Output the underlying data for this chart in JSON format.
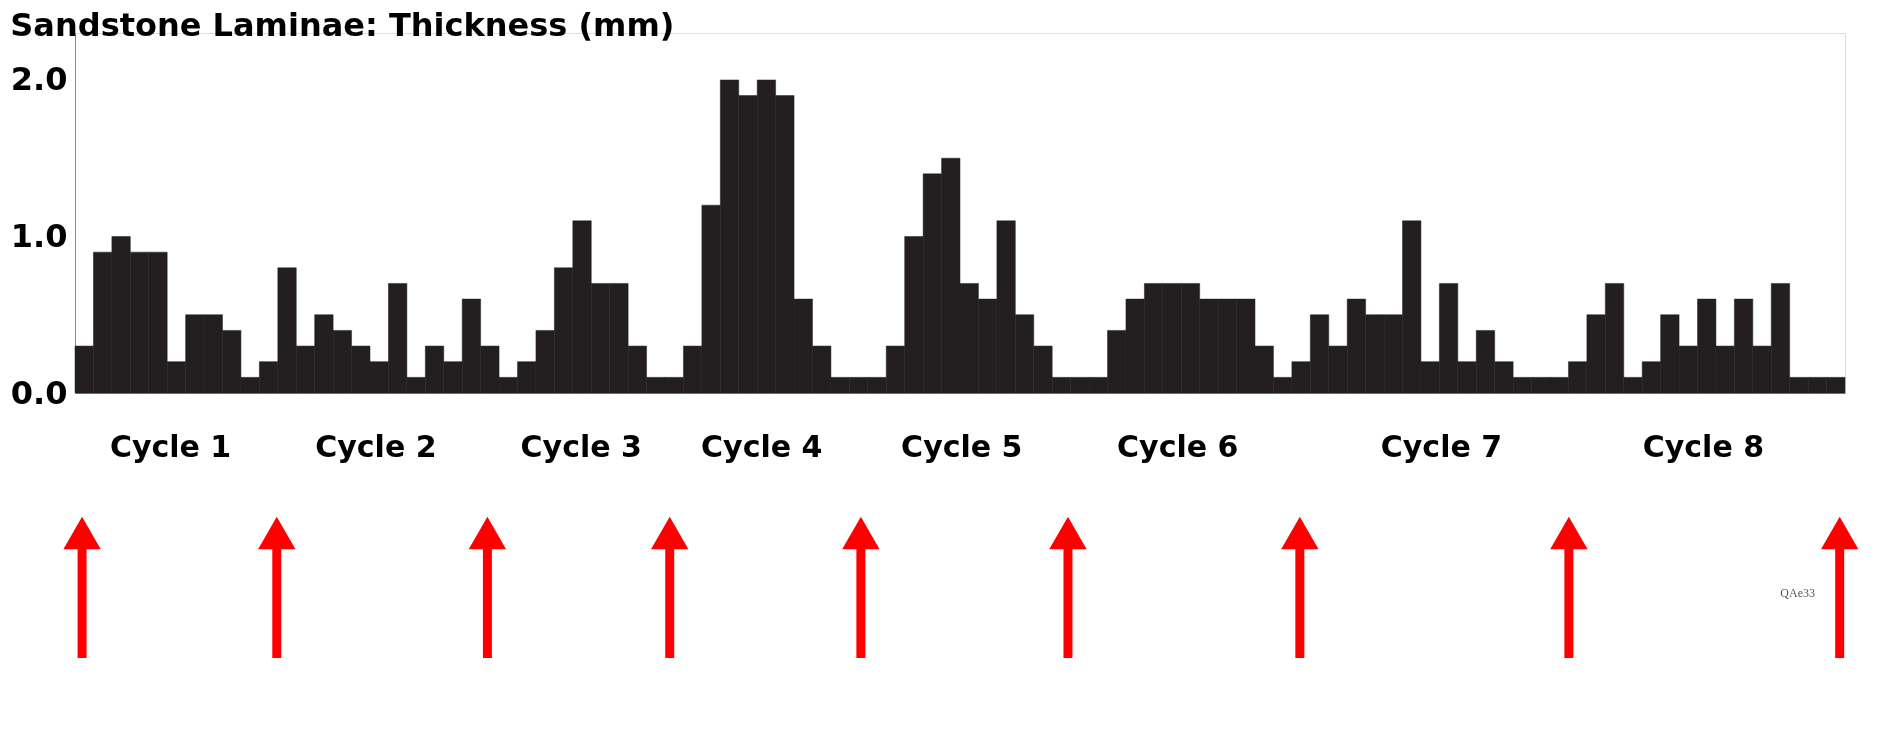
{
  "chart_data": {
    "type": "bar",
    "title": "Sandstone Laminae: Thickness (mm)",
    "categories": [
      null,
      null,
      null,
      null,
      null,
      null,
      null,
      null,
      null,
      null,
      null,
      null,
      null,
      null,
      null,
      null,
      null,
      null,
      null,
      null,
      null,
      null,
      null,
      null,
      null,
      null,
      null,
      null,
      null,
      null,
      null,
      null,
      null,
      null,
      null,
      null,
      null,
      null,
      null,
      null,
      null,
      null,
      null,
      null,
      null,
      null,
      null,
      null,
      null,
      null,
      null,
      null,
      null,
      null,
      null,
      null,
      null,
      null,
      null,
      null,
      null,
      null,
      null,
      null,
      null,
      null,
      null,
      null,
      null,
      null,
      null,
      null,
      null,
      null,
      null,
      null,
      null,
      null,
      null,
      null,
      null,
      null,
      null,
      null,
      null,
      null,
      null,
      null,
      null,
      null,
      null,
      null,
      null,
      null,
      null,
      null
    ],
    "values": [
      0.3,
      0.9,
      1.0,
      0.9,
      0.9,
      0.2,
      0.5,
      0.5,
      0.4,
      0.1,
      0.2,
      0.8,
      0.3,
      0.5,
      0.4,
      0.3,
      0.2,
      0.7,
      0.1,
      0.3,
      0.2,
      0.6,
      0.3,
      0.1,
      0.2,
      0.4,
      0.8,
      1.1,
      0.7,
      0.7,
      0.3,
      0.1,
      0.1,
      0.3,
      1.2,
      2.0,
      1.9,
      2.0,
      1.9,
      0.6,
      0.3,
      0.1,
      0.1,
      0.1,
      0.3,
      1.0,
      1.4,
      1.5,
      0.7,
      0.6,
      1.1,
      0.5,
      0.3,
      0.1,
      0.1,
      0.1,
      0.4,
      0.6,
      0.7,
      0.7,
      0.7,
      0.6,
      0.6,
      0.6,
      0.3,
      0.1,
      0.2,
      0.5,
      0.3,
      0.6,
      0.5,
      0.5,
      1.1,
      0.2,
      0.7,
      0.2,
      0.4,
      0.2,
      0.1,
      0.1,
      0.1,
      0.2,
      0.5,
      0.7,
      0.1,
      0.2,
      0.5,
      0.3,
      0.6,
      0.3,
      0.6,
      0.3,
      0.7,
      0.1,
      0.1,
      0.1
    ],
    "color": "#231f20",
    "ylim": [
      0,
      2.3
    ],
    "yticks": [
      {
        "value": 0,
        "label": "0.0"
      },
      {
        "value": 1,
        "label": "1.0"
      },
      {
        "value": 2,
        "label": "2.0"
      }
    ],
    "tick_labels": "y",
    "annotations": [
      "Cycle 1",
      "Cycle 2",
      "Cycle 3",
      "Cycle 4",
      "Cycle 5",
      "Cycle 6",
      "Cycle 7",
      "Cycle 8",
      "QAe33"
    ]
  }
}
